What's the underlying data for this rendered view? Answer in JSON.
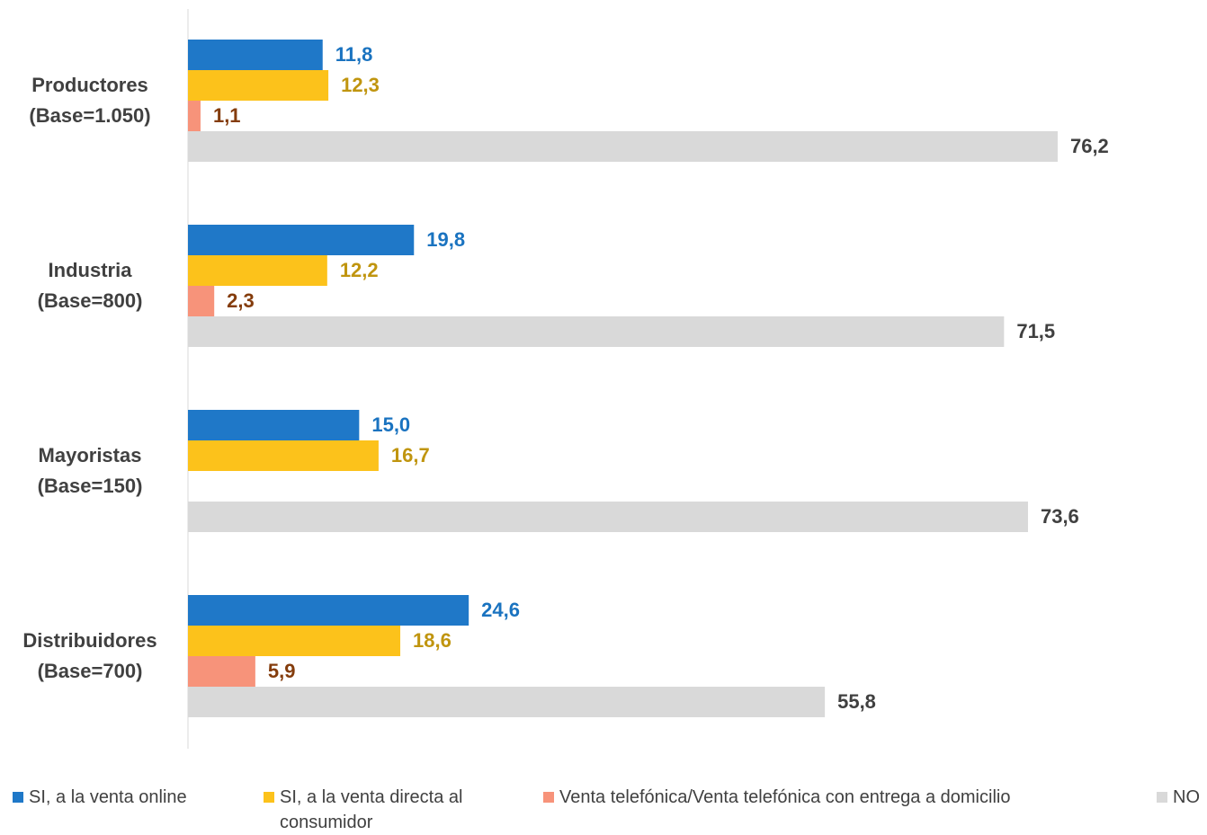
{
  "chart_data": {
    "type": "bar",
    "orientation": "horizontal",
    "categories": [
      "Productores (Base=1.050)",
      "Industria (Base=800)",
      "Mayoristas (Base=150)",
      "Distribuidores (Base=700)"
    ],
    "series": [
      {
        "name": "SI, a la venta online",
        "color": "#1f78c8",
        "label_color": "#1a73c0",
        "values": [
          11.8,
          19.8,
          15.0,
          24.6
        ],
        "value_labels": [
          "11,8",
          "19,8",
          "15,0",
          "24,6"
        ]
      },
      {
        "name": "SI, a la venta directa al consumidor",
        "color": "#fcc21b",
        "label_color": "#c0950f",
        "values": [
          12.3,
          12.2,
          16.7,
          18.6
        ],
        "value_labels": [
          "12,3",
          "12,2",
          "16,7",
          "18,6"
        ]
      },
      {
        "name": "Venta telefónica/Venta telefónica con entrega a domicilio",
        "color": "#f7937a",
        "label_color": "#843c0c",
        "values": [
          1.1,
          2.3,
          null,
          5.9
        ],
        "value_labels": [
          "1,1",
          "2,3",
          null,
          "5,9"
        ]
      },
      {
        "name": "NO",
        "color": "#d9d9d9",
        "label_color": "#404040",
        "values": [
          76.2,
          71.5,
          73.6,
          55.8
        ],
        "value_labels": [
          "76,2",
          "71,5",
          "73,6",
          "55,8"
        ]
      }
    ],
    "legend": "bottom"
  }
}
